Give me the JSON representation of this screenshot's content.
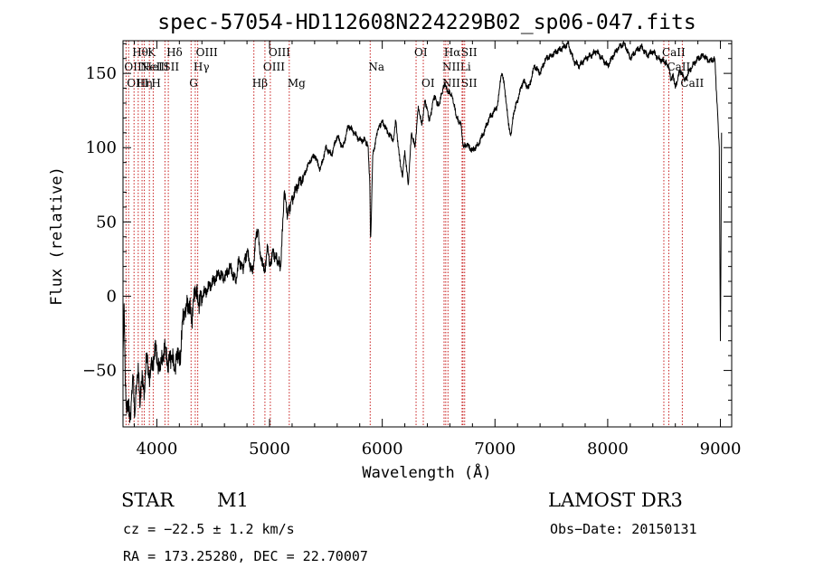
{
  "chart_data": {
    "type": "line",
    "title": "spec-57054-HD112608N224229B02_sp06-047.fits",
    "xlabel": "Wavelength (Å)",
    "ylabel": "Flux (relative)",
    "xlim": [
      3700,
      9100
    ],
    "ylim": [
      -88,
      172
    ],
    "xticks": [
      4000,
      5000,
      6000,
      7000,
      8000,
      9000
    ],
    "yticks": [
      -50,
      0,
      50,
      100,
      150
    ],
    "grid": false,
    "series": [
      {
        "name": "flux",
        "x": [
          3700,
          3710,
          3720,
          3730,
          3745,
          3760,
          3775,
          3790,
          3805,
          3820,
          3835,
          3850,
          3870,
          3890,
          3910,
          3930,
          3950,
          3970,
          3990,
          4010,
          4030,
          4050,
          4080,
          4100,
          4130,
          4160,
          4190,
          4210,
          4230,
          4250,
          4280,
          4310,
          4340,
          4370,
          4400,
          4450,
          4500,
          4550,
          4600,
          4650,
          4700,
          4730,
          4760,
          4800,
          4850,
          4880,
          4900,
          4920,
          4940,
          4960,
          4980,
          5000,
          5030,
          5060,
          5100,
          5130,
          5160,
          5200,
          5250,
          5300,
          5350,
          5400,
          5450,
          5500,
          5550,
          5600,
          5650,
          5700,
          5750,
          5800,
          5850,
          5875,
          5890,
          5895,
          5900,
          5905,
          5915,
          5930,
          5960,
          6000,
          6050,
          6100,
          6120,
          6150,
          6180,
          6200,
          6230,
          6260,
          6290,
          6320,
          6350,
          6380,
          6420,
          6460,
          6500,
          6540,
          6563,
          6580,
          6620,
          6660,
          6700,
          6720,
          6750,
          6800,
          6850,
          6900,
          6950,
          7000,
          7020,
          7040,
          7060,
          7080,
          7100,
          7120,
          7140,
          7170,
          7200,
          7250,
          7300,
          7350,
          7400,
          7450,
          7500,
          7550,
          7600,
          7650,
          7700,
          7750,
          7800,
          7850,
          7900,
          7950,
          8000,
          8050,
          8100,
          8150,
          8200,
          8250,
          8300,
          8350,
          8400,
          8450,
          8500,
          8540,
          8560,
          8580,
          8600,
          8640,
          8660,
          8680,
          8700,
          8750,
          8800,
          8850,
          8900,
          8950,
          8990,
          9000,
          9010
        ],
        "y": [
          -40,
          -5,
          -60,
          -75,
          -70,
          -85,
          -70,
          -55,
          -80,
          -60,
          -45,
          -75,
          -50,
          -65,
          -40,
          -55,
          -45,
          -50,
          -30,
          -45,
          -50,
          -40,
          -35,
          -45,
          -40,
          -50,
          -35,
          -45,
          -15,
          -10,
          -5,
          -15,
          5,
          -5,
          0,
          5,
          10,
          15,
          12,
          20,
          10,
          25,
          18,
          30,
          15,
          40,
          45,
          25,
          20,
          18,
          35,
          20,
          30,
          25,
          20,
          70,
          55,
          65,
          75,
          80,
          90,
          95,
          85,
          100,
          95,
          108,
          100,
          115,
          110,
          105,
          105,
          100,
          75,
          40,
          45,
          60,
          95,
          100,
          112,
          118,
          110,
          105,
          118,
          95,
          80,
          98,
          75,
          110,
          100,
          128,
          115,
          132,
          118,
          135,
          128,
          140,
          142,
          138,
          135,
          120,
          115,
          100,
          102,
          98,
          102,
          110,
          120,
          125,
          128,
          140,
          150,
          145,
          130,
          115,
          108,
          125,
          132,
          145,
          140,
          155,
          150,
          160,
          162,
          165,
          167,
          170,
          158,
          155,
          160,
          162,
          165,
          160,
          155,
          162,
          168,
          170,
          160,
          165,
          168,
          162,
          165,
          160,
          158,
          155,
          145,
          150,
          140,
          152,
          150,
          145,
          148,
          155,
          160,
          162,
          158,
          160,
          100,
          -30,
          110
        ]
      }
    ],
    "lines": [
      {
        "wl": 3727,
        "labels": [
          {
            "text": "OII",
            "row": 2
          }
        ]
      },
      {
        "wl": 3750,
        "labels": [
          {
            "text": "OIII",
            "row": 3
          }
        ]
      },
      {
        "wl": 3798,
        "labels": [
          {
            "text": "Hθ",
            "row": 1
          }
        ]
      },
      {
        "wl": 3835,
        "labels": [
          {
            "text": "Hη",
            "row": 3
          }
        ]
      },
      {
        "wl": 3869,
        "labels": [
          {
            "text": "NeIII",
            "row": 2
          }
        ]
      },
      {
        "wl": 3889,
        "labels": [
          {
            "text": "HeI",
            "row": 2
          }
        ]
      },
      {
        "wl": 3934,
        "labels": [
          {
            "text": "K",
            "row": 1
          }
        ]
      },
      {
        "wl": 3968,
        "labels": [
          {
            "text": "H",
            "row": 3
          }
        ]
      },
      {
        "wl": 4072,
        "labels": [
          {
            "text": "SII",
            "row": 2
          }
        ]
      },
      {
        "wl": 4102,
        "labels": [
          {
            "text": "Hδ",
            "row": 1
          }
        ]
      },
      {
        "wl": 4304,
        "labels": [
          {
            "text": "G",
            "row": 3
          }
        ]
      },
      {
        "wl": 4341,
        "labels": [
          {
            "text": "Hγ",
            "row": 2
          }
        ]
      },
      {
        "wl": 4363,
        "labels": [
          {
            "text": "OIII",
            "row": 1
          }
        ]
      },
      {
        "wl": 4861,
        "labels": [
          {
            "text": "Hβ",
            "row": 3
          }
        ]
      },
      {
        "wl": 4959,
        "labels": [
          {
            "text": "OIII",
            "row": 2
          }
        ]
      },
      {
        "wl": 5007,
        "labels": [
          {
            "text": "OIII",
            "row": 1
          }
        ]
      },
      {
        "wl": 5175,
        "labels": [
          {
            "text": "Mg",
            "row": 3
          }
        ]
      },
      {
        "wl": 5893,
        "labels": [
          {
            "text": "Na",
            "row": 2
          }
        ]
      },
      {
        "wl": 6300,
        "labels": [
          {
            "text": "OI",
            "row": 1
          }
        ]
      },
      {
        "wl": 6364,
        "labels": [
          {
            "text": "OI",
            "row": 3
          }
        ]
      },
      {
        "wl": 6548,
        "labels": [
          {
            "text": "NII",
            "row": 2
          },
          {
            "text": "NII",
            "row": 3
          }
        ]
      },
      {
        "wl": 6563,
        "labels": [
          {
            "text": "Hα",
            "row": 1
          }
        ]
      },
      {
        "wl": 6583,
        "labels": []
      },
      {
        "wl": 6708,
        "labels": [
          {
            "text": "Li",
            "row": 2
          }
        ]
      },
      {
        "wl": 6716,
        "labels": [
          {
            "text": "SII",
            "row": 1
          },
          {
            "text": "SII",
            "row": 3
          }
        ]
      },
      {
        "wl": 6731,
        "labels": []
      },
      {
        "wl": 8498,
        "labels": [
          {
            "text": "CaII",
            "row": 1
          }
        ]
      },
      {
        "wl": 8542,
        "labels": [
          {
            "text": "CaII",
            "row": 2
          }
        ]
      },
      {
        "wl": 8662,
        "labels": [
          {
            "text": "CaII",
            "row": 3
          }
        ]
      }
    ]
  },
  "info": {
    "object_class": "STAR",
    "subclass": "M1",
    "survey": "LAMOST DR3",
    "redshift": "cz = −22.5 ± 1.2 km/s",
    "obs_date": "Obs−Date: 20150131",
    "coords": "RA = 173.25280, DEC =  22.70007"
  }
}
